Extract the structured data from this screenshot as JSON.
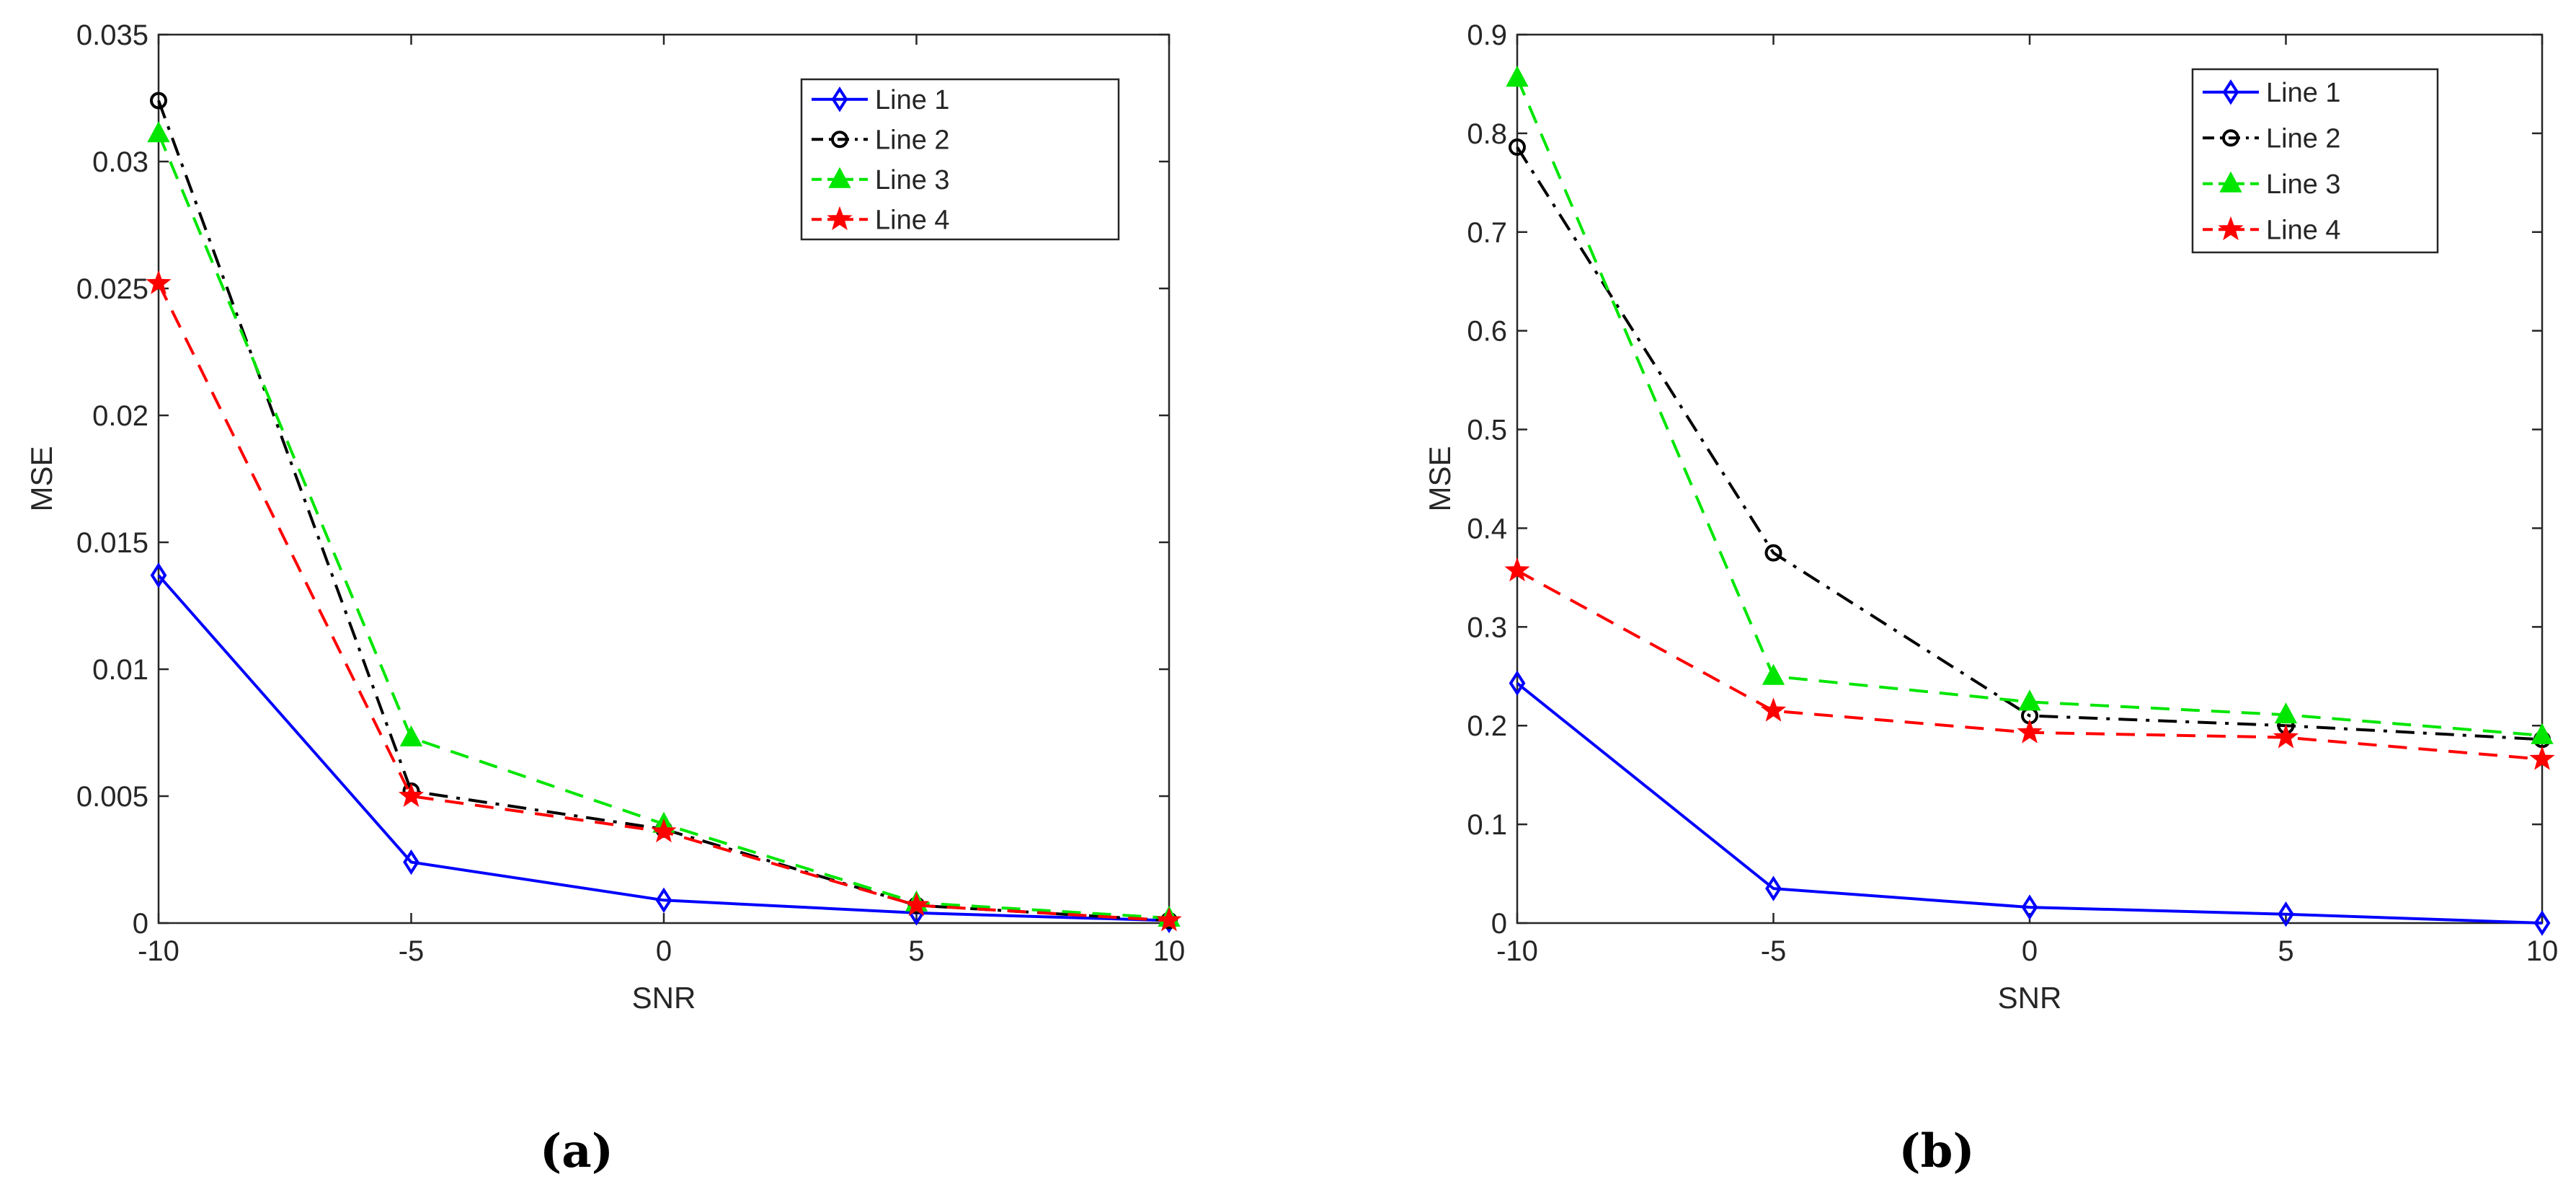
{
  "chart_data": [
    {
      "type": "line",
      "panel_label": "(a)",
      "xlabel": "SNR",
      "ylabel": "MSE",
      "xlim": [
        -10,
        10
      ],
      "ylim": [
        0,
        0.035
      ],
      "xticks": [
        "-10",
        "-5",
        "0",
        "5",
        "10"
      ],
      "yticks": [
        "0",
        "0.005",
        "0.01",
        "0.015",
        "0.02",
        "0.025",
        "0.03",
        "0.035"
      ],
      "grid": false,
      "legend_position": "top-right",
      "x": [
        -10,
        -5,
        0,
        5,
        10
      ],
      "series": [
        {
          "name": "Line 1",
          "values": [
            0.0137,
            0.0024,
            0.0009,
            0.0004,
            0.0001
          ],
          "color": "#0000ff",
          "dash": "solid",
          "marker": "diamond"
        },
        {
          "name": "Line 2",
          "values": [
            0.0324,
            0.0052,
            0.0037,
            0.0007,
            0.0001
          ],
          "color": "#000000",
          "dash": "dashdot",
          "marker": "circle"
        },
        {
          "name": "Line 3",
          "values": [
            0.0311,
            0.0073,
            0.0039,
            0.0008,
            0.0002
          ],
          "color": "#00e600",
          "dash": "dashed",
          "marker": "triangle"
        },
        {
          "name": "Line 4",
          "values": [
            0.0252,
            0.005,
            0.0036,
            0.0007,
            0.0001
          ],
          "color": "#ff0000",
          "dash": "dashed",
          "marker": "star"
        }
      ]
    },
    {
      "type": "line",
      "panel_label": "(b)",
      "xlabel": "SNR",
      "ylabel": "MSE",
      "xlim": [
        -10,
        10
      ],
      "ylim": [
        0,
        0.9
      ],
      "xticks": [
        "-10",
        "-5",
        "0",
        "5",
        "10"
      ],
      "yticks": [
        "0",
        "0.1",
        "0.2",
        "0.3",
        "0.4",
        "0.5",
        "0.6",
        "0.7",
        "0.8",
        "0.9"
      ],
      "grid": false,
      "legend_position": "top-right",
      "x": [
        -10,
        -5,
        0,
        5,
        10
      ],
      "series": [
        {
          "name": "Line 1",
          "values": [
            0.243,
            0.035,
            0.016,
            0.009,
            0.0
          ],
          "color": "#0000ff",
          "dash": "solid",
          "marker": "diamond"
        },
        {
          "name": "Line 2",
          "values": [
            0.786,
            0.375,
            0.21,
            0.2,
            0.186
          ],
          "color": "#000000",
          "dash": "dashdot",
          "marker": "circle"
        },
        {
          "name": "Line 3",
          "values": [
            0.856,
            0.25,
            0.224,
            0.211,
            0.19
          ],
          "color": "#00e600",
          "dash": "dashed",
          "marker": "triangle"
        },
        {
          "name": "Line 4",
          "values": [
            0.357,
            0.215,
            0.193,
            0.188,
            0.166
          ],
          "color": "#ff0000",
          "dash": "dashed",
          "marker": "star"
        }
      ]
    }
  ]
}
